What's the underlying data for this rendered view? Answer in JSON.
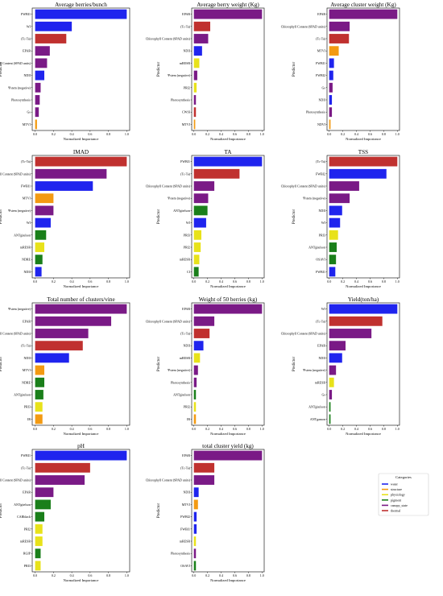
{
  "categories_legend": {
    "title": "Categories",
    "items": [
      {
        "label": "water",
        "color": "#1f24ee"
      },
      {
        "label": "structure",
        "color": "#f39a12"
      },
      {
        "label": "physiology",
        "color": "#e8e21a"
      },
      {
        "label": "pigment",
        "color": "#1a7f1a"
      },
      {
        "label": "canopy_state",
        "color": "#7a1a86"
      },
      {
        "label": "thermal",
        "color": "#c0312f"
      }
    ]
  },
  "category_colors": {
    "water": "#1f24ee",
    "structure": "#f39a12",
    "physiology": "#e8e21a",
    "pigment": "#1a7f1a",
    "canopy_state": "#7a1a86",
    "thermal": "#c0312f"
  },
  "chart_data": [
    {
      "type": "bar",
      "title": "Average berries/bunch",
      "xlabel": "Normalized Importance",
      "ylabel": "Predictor",
      "xlim": [
        0,
        1
      ],
      "bars": [
        {
          "label": "FWBI1",
          "value": 1.0,
          "category": "water"
        },
        {
          "label": "WI",
          "value": 0.4,
          "category": "water"
        },
        {
          "label": "(Tc-Ta)",
          "value": 0.34,
          "category": "thermal"
        },
        {
          "label": "EPAR",
          "value": 0.16,
          "category": "canopy_state"
        },
        {
          "label": "Chlorophyll Content (SPAD units)",
          "value": 0.13,
          "category": "canopy_state"
        },
        {
          "label": "NDII",
          "value": 0.1,
          "category": "water"
        },
        {
          "label": "Ψstem (negative)",
          "value": 0.06,
          "category": "canopy_state"
        },
        {
          "label": "Photosynthesis",
          "value": 0.05,
          "category": "canopy_state"
        },
        {
          "label": "Gs",
          "value": 0.04,
          "category": "canopy_state"
        },
        {
          "label": "MTVI",
          "value": 0.02,
          "category": "structure"
        }
      ]
    },
    {
      "type": "bar",
      "title": "Average berry weight (Kg)",
      "xlabel": "Normalized Importance",
      "ylabel": "Predictor",
      "xlim": [
        0,
        1
      ],
      "bars": [
        {
          "label": "EPAR",
          "value": 1.0,
          "category": "canopy_state"
        },
        {
          "label": "(Tc-Ta)",
          "value": 0.24,
          "category": "thermal"
        },
        {
          "label": "Chlorophyll Content (SPAD units)",
          "value": 0.21,
          "category": "canopy_state"
        },
        {
          "label": "NDII",
          "value": 0.12,
          "category": "water"
        },
        {
          "label": "mRESR",
          "value": 0.08,
          "category": "physiology"
        },
        {
          "label": "Ψstem (negative)",
          "value": 0.05,
          "category": "canopy_state"
        },
        {
          "label": "PRI2",
          "value": 0.04,
          "category": "physiology"
        },
        {
          "label": "Photosynthesis",
          "value": 0.03,
          "category": "canopy_state"
        },
        {
          "label": "CWSI",
          "value": 0.03,
          "category": "thermal"
        },
        {
          "label": "MTVI",
          "value": 0.02,
          "category": "structure"
        }
      ]
    },
    {
      "type": "bar",
      "title": "Average cluster weight (Kg)",
      "xlabel": "Normalized Importance",
      "ylabel": "Predictor",
      "xlim": [
        0,
        1
      ],
      "bars": [
        {
          "label": "EPAR",
          "value": 1.0,
          "category": "canopy_state"
        },
        {
          "label": "Chlorophyll Content (SPAD units)",
          "value": 0.3,
          "category": "canopy_state"
        },
        {
          "label": "(Tc-Ta)",
          "value": 0.29,
          "category": "thermal"
        },
        {
          "label": "MTVI",
          "value": 0.14,
          "category": "structure"
        },
        {
          "label": "FWBI1",
          "value": 0.07,
          "category": "water"
        },
        {
          "label": "FWBI2",
          "value": 0.06,
          "category": "water"
        },
        {
          "label": "Gs",
          "value": 0.05,
          "category": "canopy_state"
        },
        {
          "label": "NDII",
          "value": 0.04,
          "category": "water"
        },
        {
          "label": "Photosynthesis",
          "value": 0.04,
          "category": "canopy_state"
        },
        {
          "label": "NDVI",
          "value": 0.02,
          "category": "structure"
        }
      ]
    },
    {
      "type": "bar",
      "title": "IMAD",
      "xlabel": "Normalized Importance",
      "ylabel": "Predictor",
      "xlim": [
        0,
        1
      ],
      "bars": [
        {
          "label": "(Tc-Ta)",
          "value": 1.0,
          "category": "thermal"
        },
        {
          "label": "Chlorophyll Content (SPAD units)",
          "value": 0.78,
          "category": "canopy_state"
        },
        {
          "label": "FWBI1",
          "value": 0.63,
          "category": "water"
        },
        {
          "label": "MTVI",
          "value": 0.2,
          "category": "structure"
        },
        {
          "label": "Ψstem (negative)",
          "value": 0.2,
          "category": "canopy_state"
        },
        {
          "label": "WI",
          "value": 0.17,
          "category": "water"
        },
        {
          "label": "ANTgitelson",
          "value": 0.12,
          "category": "pigment"
        },
        {
          "label": "mRESR",
          "value": 0.1,
          "category": "physiology"
        },
        {
          "label": "NDRE",
          "value": 0.08,
          "category": "pigment"
        },
        {
          "label": "NDII",
          "value": 0.07,
          "category": "water"
        }
      ]
    },
    {
      "type": "bar",
      "title": "TA",
      "xlabel": "Normalized Importance",
      "ylabel": "Predictor",
      "xlim": [
        0,
        1
      ],
      "bars": [
        {
          "label": "FWBI1",
          "value": 1.0,
          "category": "water"
        },
        {
          "label": "(Tc-Ta)",
          "value": 0.67,
          "category": "thermal"
        },
        {
          "label": "Chlorophyll Content (SPAD units)",
          "value": 0.3,
          "category": "canopy_state"
        },
        {
          "label": "Ψstem (negative)",
          "value": 0.21,
          "category": "canopy_state"
        },
        {
          "label": "ANTgitelson",
          "value": 0.2,
          "category": "pigment"
        },
        {
          "label": "WI",
          "value": 0.18,
          "category": "water"
        },
        {
          "label": "PRI3",
          "value": 0.11,
          "category": "physiology"
        },
        {
          "label": "PRI2",
          "value": 0.1,
          "category": "physiology"
        },
        {
          "label": "mRESR",
          "value": 0.08,
          "category": "physiology"
        },
        {
          "label": "CI",
          "value": 0.07,
          "category": "pigment"
        }
      ]
    },
    {
      "type": "bar",
      "title": "TSS",
      "xlabel": "Normalized Importance",
      "ylabel": "Predictor",
      "xlim": [
        0,
        1
      ],
      "bars": [
        {
          "label": "(Tc-Ta)",
          "value": 1.0,
          "category": "thermal"
        },
        {
          "label": "FWBI2",
          "value": 0.84,
          "category": "water"
        },
        {
          "label": "Chlorophyll Content (SPAD units)",
          "value": 0.44,
          "category": "canopy_state"
        },
        {
          "label": "Ψstem (negative)",
          "value": 0.3,
          "category": "canopy_state"
        },
        {
          "label": "NDII",
          "value": 0.19,
          "category": "water"
        },
        {
          "label": "WI",
          "value": 0.16,
          "category": "water"
        },
        {
          "label": "PRI3",
          "value": 0.13,
          "category": "physiology"
        },
        {
          "label": "ANTgitelson",
          "value": 0.11,
          "category": "pigment"
        },
        {
          "label": "OSAVI",
          "value": 0.1,
          "category": "pigment"
        },
        {
          "label": "FWBI1",
          "value": 0.09,
          "category": "water"
        }
      ]
    },
    {
      "type": "bar",
      "title": "Total number of clusters/vine",
      "xlabel": "Normalized Importance",
      "ylabel": "Predictor",
      "xlim": [
        0,
        1
      ],
      "bars": [
        {
          "label": "Ψstem (negative)",
          "value": 1.0,
          "category": "canopy_state"
        },
        {
          "label": "EPAR",
          "value": 0.83,
          "category": "canopy_state"
        },
        {
          "label": "Chlorophyll Content (SPAD units)",
          "value": 0.58,
          "category": "canopy_state"
        },
        {
          "label": "(Tc-Ta)",
          "value": 0.52,
          "category": "thermal"
        },
        {
          "label": "NDII",
          "value": 0.37,
          "category": "water"
        },
        {
          "label": "MTVI",
          "value": 0.1,
          "category": "structure"
        },
        {
          "label": "NDRE",
          "value": 0.1,
          "category": "pigment"
        },
        {
          "label": "ANTgitelson",
          "value": 0.09,
          "category": "pigment"
        },
        {
          "label": "PRI3",
          "value": 0.08,
          "category": "physiology"
        },
        {
          "label": "IR",
          "value": 0.08,
          "category": "structure"
        }
      ]
    },
    {
      "type": "bar",
      "title": "Weight of 50 berries (kg)",
      "xlabel": "Normalized Importance",
      "ylabel": "Predictor",
      "xlim": [
        0,
        1
      ],
      "bars": [
        {
          "label": "EPAR",
          "value": 1.0,
          "category": "canopy_state"
        },
        {
          "label": "Chlorophyll Content (SPAD units)",
          "value": 0.3,
          "category": "canopy_state"
        },
        {
          "label": "(Tc-Ta)",
          "value": 0.23,
          "category": "thermal"
        },
        {
          "label": "NDII",
          "value": 0.14,
          "category": "water"
        },
        {
          "label": "mRESR",
          "value": 0.09,
          "category": "physiology"
        },
        {
          "label": "Ψstem (negative)",
          "value": 0.06,
          "category": "canopy_state"
        },
        {
          "label": "Photosynthesis",
          "value": 0.04,
          "category": "canopy_state"
        },
        {
          "label": "ANTgitelson",
          "value": 0.03,
          "category": "pigment"
        },
        {
          "label": "PRI2",
          "value": 0.03,
          "category": "physiology"
        },
        {
          "label": "IR",
          "value": 0.03,
          "category": "structure"
        }
      ]
    },
    {
      "type": "bar",
      "title": "Yield(ton/ha)",
      "xlabel": "Normalized Importance",
      "ylabel": "Predictor",
      "xlim": [
        0,
        1
      ],
      "bars": [
        {
          "label": "WI",
          "value": 1.0,
          "category": "water"
        },
        {
          "label": "(Tc-Ta)",
          "value": 0.78,
          "category": "thermal"
        },
        {
          "label": "Chlorophyll Content (SPAD units)",
          "value": 0.62,
          "category": "canopy_state"
        },
        {
          "label": "EPAR",
          "value": 0.24,
          "category": "canopy_state"
        },
        {
          "label": "NDII",
          "value": 0.19,
          "category": "water"
        },
        {
          "label": "Ψstem (negative)",
          "value": 0.1,
          "category": "canopy_state"
        },
        {
          "label": "mRESR",
          "value": 0.07,
          "category": "physiology"
        },
        {
          "label": "Gs",
          "value": 0.04,
          "category": "canopy_state"
        },
        {
          "label": "ANTgitelson",
          "value": 0.02,
          "category": "pigment"
        },
        {
          "label": "ANTgamon",
          "value": 0.02,
          "category": "pigment"
        }
      ]
    },
    {
      "type": "bar",
      "title": "pH",
      "xlabel": "Normalized Importance",
      "ylabel": "Predictor",
      "xlim": [
        0,
        1
      ],
      "bars": [
        {
          "label": "FWBI1",
          "value": 1.0,
          "category": "water"
        },
        {
          "label": "(Tc-Ta)",
          "value": 0.6,
          "category": "thermal"
        },
        {
          "label": "Chlorophyll Content (SPAD units)",
          "value": 0.54,
          "category": "canopy_state"
        },
        {
          "label": "EPAR",
          "value": 0.2,
          "category": "canopy_state"
        },
        {
          "label": "ANTgitelson",
          "value": 0.17,
          "category": "pigment"
        },
        {
          "label": "CARblack",
          "value": 0.1,
          "category": "pigment"
        },
        {
          "label": "PRI2",
          "value": 0.08,
          "category": "physiology"
        },
        {
          "label": "mRESR",
          "value": 0.08,
          "category": "physiology"
        },
        {
          "label": "RGIP",
          "value": 0.06,
          "category": "pigment"
        },
        {
          "label": "PRI3",
          "value": 0.06,
          "category": "physiology"
        }
      ]
    },
    {
      "type": "bar",
      "title": "total cluster yield (kg)",
      "xlabel": "Normalized Importance",
      "ylabel": "Predictor",
      "xlim": [
        0,
        1
      ],
      "bars": [
        {
          "label": "EPAR",
          "value": 1.0,
          "category": "canopy_state"
        },
        {
          "label": "(Tc-Ta)",
          "value": 0.3,
          "category": "thermal"
        },
        {
          "label": "Chlorophyll Content (SPAD units)",
          "value": 0.3,
          "category": "canopy_state"
        },
        {
          "label": "NDII",
          "value": 0.07,
          "category": "water"
        },
        {
          "label": "MTVI",
          "value": 0.06,
          "category": "structure"
        },
        {
          "label": "FWBI2",
          "value": 0.04,
          "category": "water"
        },
        {
          "label": "FWBI1",
          "value": 0.04,
          "category": "water"
        },
        {
          "label": "mRESR",
          "value": 0.03,
          "category": "physiology"
        },
        {
          "label": "Photosynthesis",
          "value": 0.03,
          "category": "canopy_state"
        },
        {
          "label": "OSAVI",
          "value": 0.03,
          "category": "pigment"
        }
      ]
    }
  ],
  "xticks": [
    "0.0",
    "0.2",
    "0.4",
    "0.6",
    "0.8",
    "1.0"
  ]
}
